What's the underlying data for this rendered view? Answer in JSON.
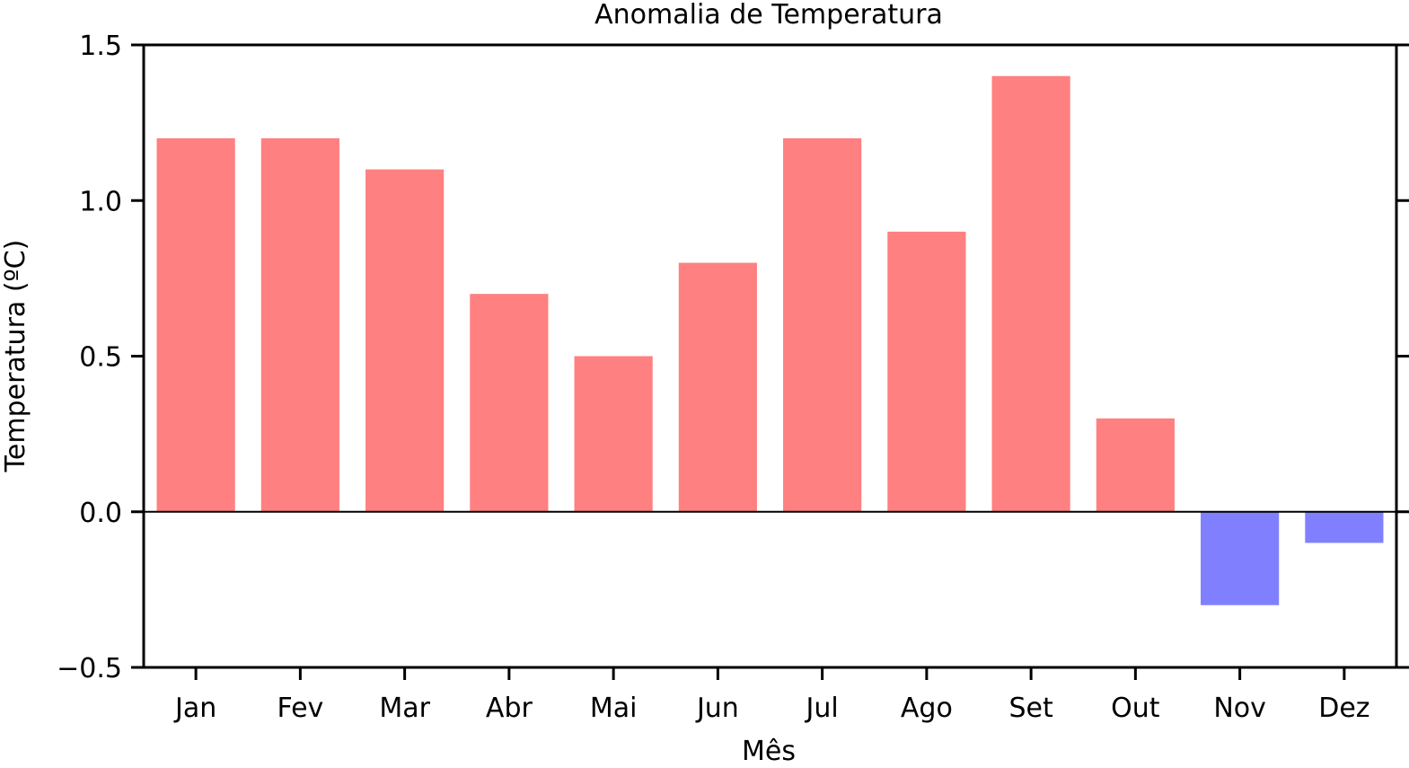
{
  "chart_data": {
    "type": "bar",
    "title": "Anomalia de Temperatura",
    "xlabel": "Mês",
    "ylabel": "Temperatura (ºC)",
    "categories": [
      "Jan",
      "Fev",
      "Mar",
      "Abr",
      "Mai",
      "Jun",
      "Jul",
      "Ago",
      "Set",
      "Out",
      "Nov",
      "Dez"
    ],
    "values": [
      1.2,
      1.2,
      1.1,
      0.7,
      0.5,
      0.8,
      1.2,
      0.9,
      1.4,
      0.3,
      -0.3,
      -0.1
    ],
    "ylim": [
      -0.5,
      1.5
    ],
    "yticks": [
      -0.5,
      0.0,
      0.5,
      1.0,
      1.5
    ],
    "ytick_labels": [
      "−0.5",
      "0.0",
      "0.5",
      "1.0",
      "1.5"
    ],
    "grid": false,
    "zero_line": true,
    "colors": {
      "positive": "#ff8080",
      "negative": "#8080ff",
      "axis": "#000000"
    }
  }
}
